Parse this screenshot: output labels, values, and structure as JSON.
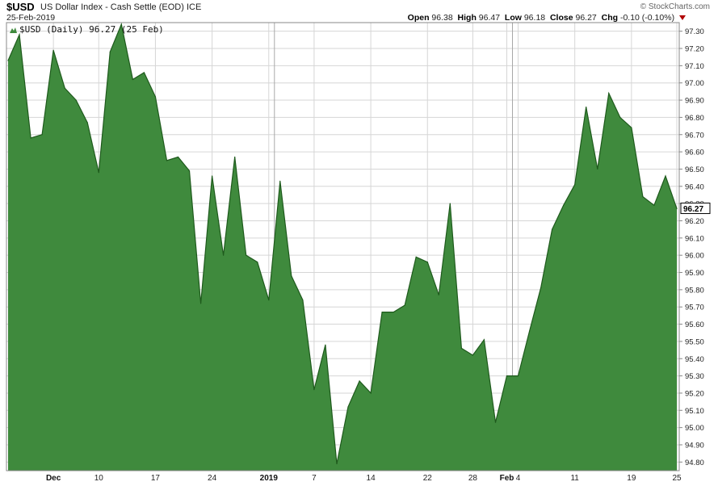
{
  "header": {
    "symbol": "$USD",
    "name": "US Dollar Index - Cash Settle (EOD)  ICE",
    "copyright": "© StockCharts.com",
    "date": "25-Feb-2019",
    "open_label": "Open",
    "open": "96.38",
    "high_label": "High",
    "high": "96.47",
    "low_label": "Low",
    "low": "96.18",
    "close_label": "Close",
    "close": "96.27",
    "chg_label": "Chg",
    "chg": "-0.10 (-0.10%)"
  },
  "chart_data": {
    "type": "area",
    "legend": "$USD (Daily) 96.27 (25 Feb)",
    "last_value_label": "96.27",
    "ylim": [
      94.75,
      97.35
    ],
    "yticks": [
      "94.80",
      "94.90",
      "95.00",
      "95.10",
      "95.20",
      "95.30",
      "95.40",
      "95.50",
      "95.60",
      "95.70",
      "95.80",
      "95.90",
      "96.00",
      "96.10",
      "96.20",
      "96.30",
      "96.40",
      "96.50",
      "96.60",
      "96.70",
      "96.80",
      "96.90",
      "97.00",
      "97.10",
      "97.20",
      "97.30"
    ],
    "xtick_labels": [
      {
        "label": "Dec",
        "index": 4,
        "bold": true
      },
      {
        "label": "10",
        "index": 8,
        "bold": false
      },
      {
        "label": "17",
        "index": 13,
        "bold": false
      },
      {
        "label": "24",
        "index": 18,
        "bold": false
      },
      {
        "label": "2019",
        "index": 23,
        "bold": true
      },
      {
        "label": "7",
        "index": 27,
        "bold": false
      },
      {
        "label": "14",
        "index": 32,
        "bold": false
      },
      {
        "label": "22",
        "index": 37,
        "bold": false
      },
      {
        "label": "28",
        "index": 41,
        "bold": false
      },
      {
        "label": "Feb",
        "index": 44,
        "bold": true
      },
      {
        "label": "4",
        "index": 45,
        "bold": false
      },
      {
        "label": "11",
        "index": 50,
        "bold": false
      },
      {
        "label": "19",
        "index": 55,
        "bold": false
      },
      {
        "label": "25",
        "index": 59,
        "bold": false
      }
    ],
    "vlines_at_index": [
      23.5,
      44.5
    ],
    "values": [
      97.13,
      97.28,
      96.68,
      96.7,
      97.19,
      96.97,
      96.9,
      96.77,
      96.48,
      97.18,
      97.34,
      97.02,
      97.06,
      96.92,
      96.55,
      96.57,
      96.49,
      95.72,
      96.46,
      96.0,
      96.57,
      96.0,
      95.96,
      95.74,
      96.43,
      95.88,
      95.74,
      95.22,
      95.48,
      94.79,
      95.12,
      95.27,
      95.2,
      95.67,
      95.67,
      95.71,
      95.99,
      95.96,
      95.77,
      96.3,
      95.46,
      95.42,
      95.51,
      95.03,
      95.3,
      95.3,
      95.56,
      95.81,
      96.15,
      96.29,
      96.41,
      96.86,
      96.5,
      96.94,
      96.8,
      96.74,
      96.34,
      96.29,
      96.46,
      96.27
    ],
    "colors": {
      "fill": "#3f8a3d",
      "line": "#1e5a1c",
      "grid": "#d6d6d6"
    }
  }
}
